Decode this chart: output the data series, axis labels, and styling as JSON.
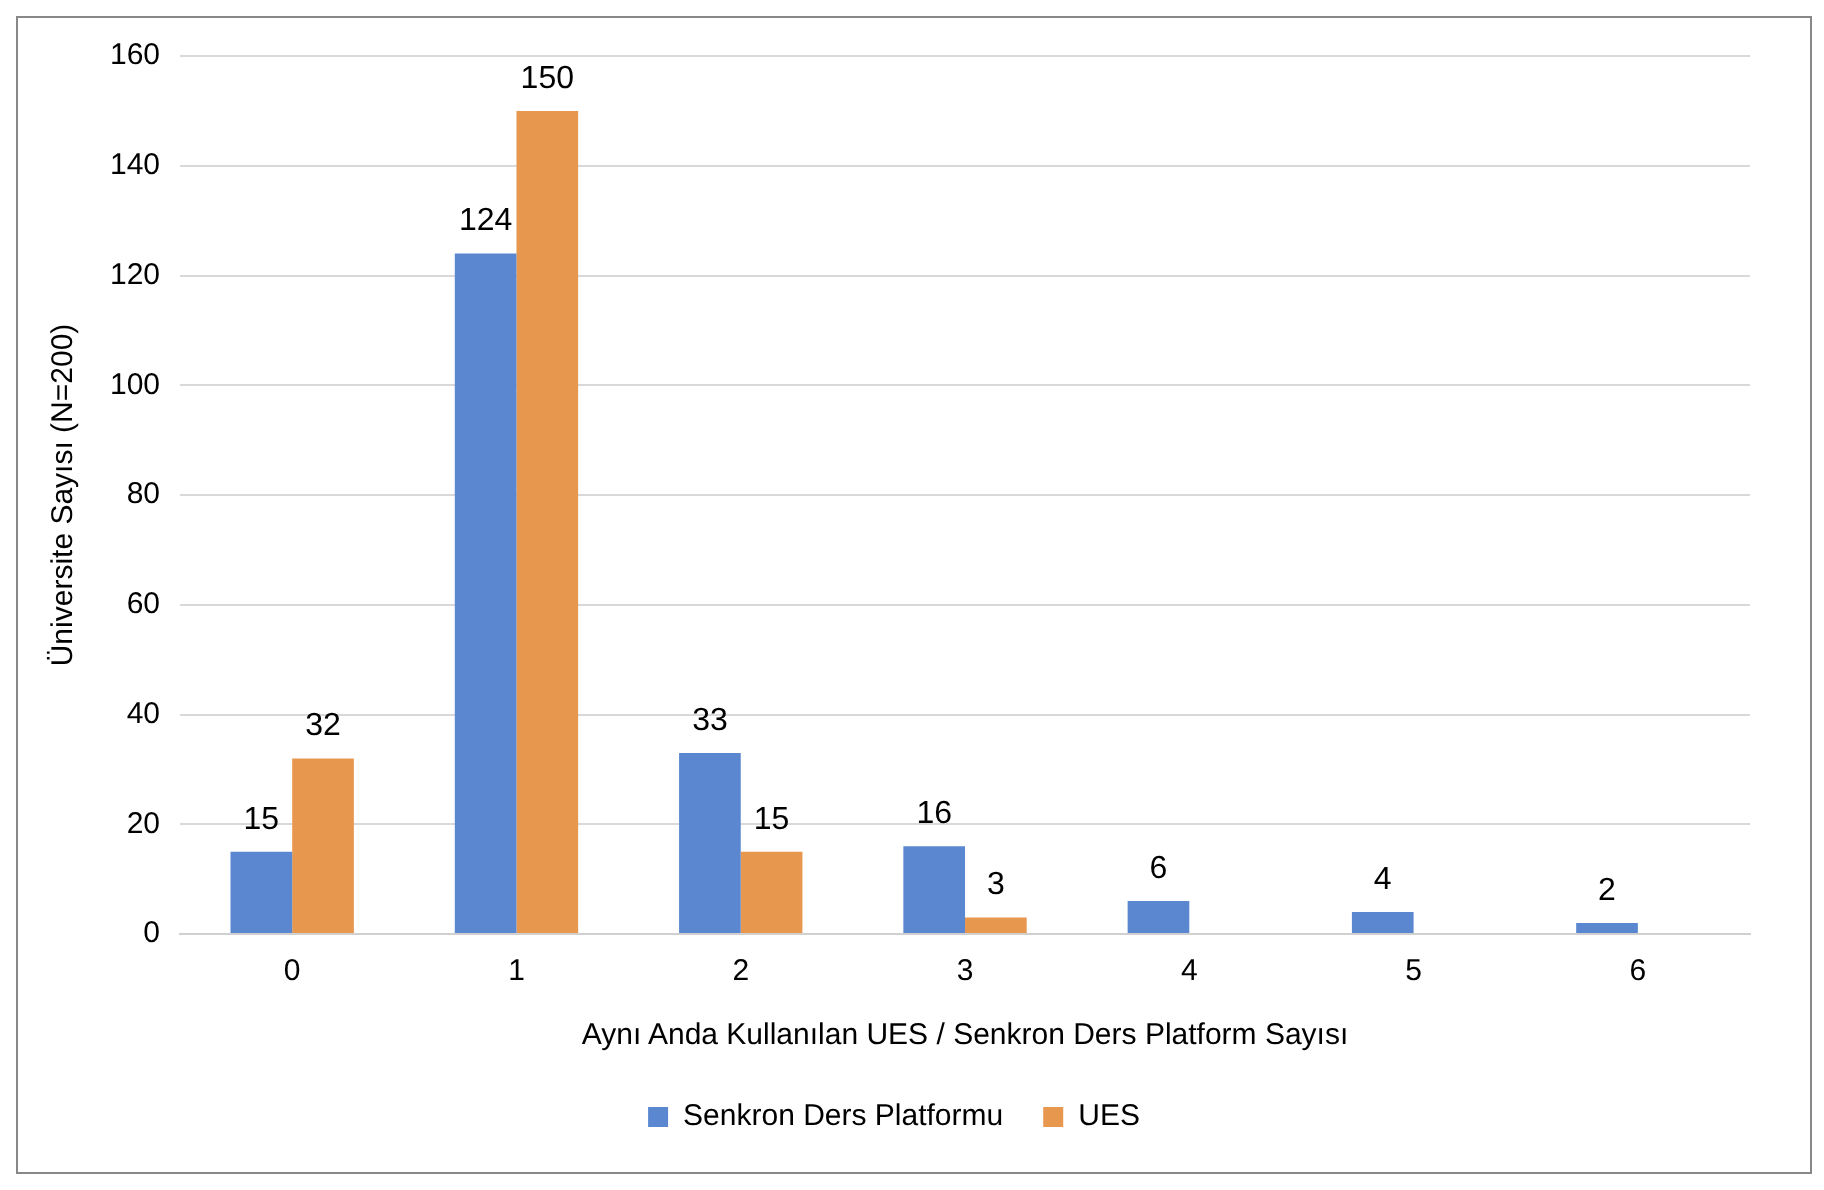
{
  "chart_data": {
    "type": "bar",
    "xlabel": "Aynı Anda Kullanılan UES / Senkron Ders Platform Sayısı",
    "ylabel": "Üniversite Sayısı (N=200)",
    "categories": [
      "0",
      "1",
      "2",
      "3",
      "4",
      "5",
      "6"
    ],
    "series": [
      {
        "name": "Senkron Ders Platformu",
        "color": "#5b87d1",
        "values": [
          15,
          124,
          33,
          16,
          6,
          4,
          2
        ]
      },
      {
        "name": "UES",
        "color": "#e8974e",
        "values": [
          32,
          150,
          15,
          3,
          null,
          null,
          null
        ]
      }
    ],
    "ylim": [
      0,
      160
    ],
    "yticks": [
      0,
      20,
      40,
      60,
      80,
      100,
      120,
      140,
      160
    ],
    "grid": "y",
    "legend": "bottom",
    "data_labels": true
  }
}
